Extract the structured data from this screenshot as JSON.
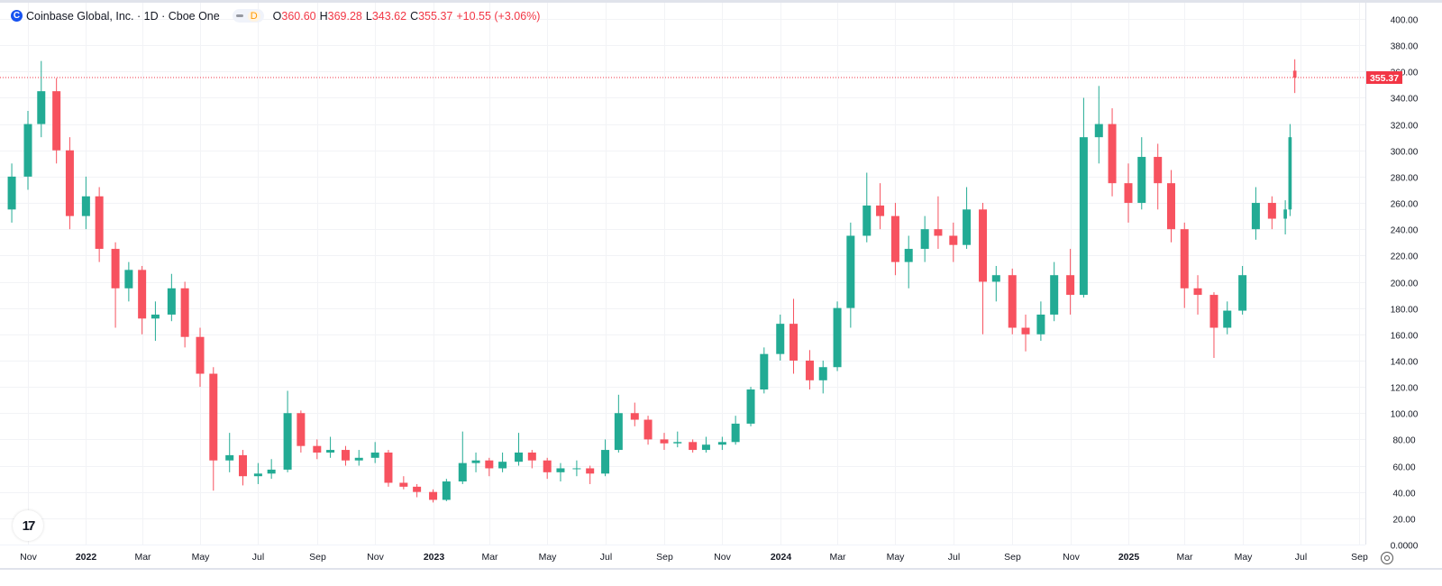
{
  "header": {
    "symbol_logo": "C",
    "title": "Coinbase Global, Inc. · 1D · Cboe One",
    "interval_badge": "D",
    "ohlc": {
      "o_label": "O",
      "o_value": "360.60",
      "h_label": "H",
      "h_value": "369.28",
      "l_label": "L",
      "l_value": "343.62",
      "c_label": "C",
      "c_value": "355.37",
      "change": "+10.55 (+3.06%)"
    }
  },
  "colors": {
    "up": "#22ab94",
    "down": "#f7525f",
    "last_price": "#f23645",
    "grid": "#f2f3f6"
  },
  "icons": {
    "tv_logo": "tradingview-logo",
    "settings": "auto-scale-settings-icon"
  },
  "tv_logo_text": "17",
  "chart_data": {
    "type": "candlestick",
    "ylim": [
      0,
      400
    ],
    "y_ticks": [
      "0.0000",
      "20.00",
      "40.00",
      "60.00",
      "80.00",
      "100.00",
      "120.00",
      "140.00",
      "160.00",
      "180.00",
      "200.00",
      "220.00",
      "240.00",
      "260.00",
      "280.00",
      "300.00",
      "320.00",
      "340.00",
      "360.00",
      "380.00",
      "400.00"
    ],
    "x_ticks": [
      {
        "date": "2021-11-01",
        "label": "Nov"
      },
      {
        "date": "2022-01-01",
        "label": "2022"
      },
      {
        "date": "2022-03-01",
        "label": "Mar"
      },
      {
        "date": "2022-05-01",
        "label": "May"
      },
      {
        "date": "2022-07-01",
        "label": "Jul"
      },
      {
        "date": "2022-09-01",
        "label": "Sep"
      },
      {
        "date": "2022-11-01",
        "label": "Nov"
      },
      {
        "date": "2023-01-01",
        "label": "2023"
      },
      {
        "date": "2023-03-01",
        "label": "Mar"
      },
      {
        "date": "2023-05-01",
        "label": "May"
      },
      {
        "date": "2023-07-01",
        "label": "Jul"
      },
      {
        "date": "2023-09-01",
        "label": "Sep"
      },
      {
        "date": "2023-11-01",
        "label": "Nov"
      },
      {
        "date": "2024-01-01",
        "label": "2024"
      },
      {
        "date": "2024-03-01",
        "label": "Mar"
      },
      {
        "date": "2024-05-01",
        "label": "May"
      },
      {
        "date": "2024-07-01",
        "label": "Jul"
      },
      {
        "date": "2024-09-01",
        "label": "Sep"
      },
      {
        "date": "2024-11-01",
        "label": "Nov"
      },
      {
        "date": "2025-01-01",
        "label": "2025"
      },
      {
        "date": "2025-03-01",
        "label": "Mar"
      },
      {
        "date": "2025-05-01",
        "label": "May"
      },
      {
        "date": "2025-07-01",
        "label": "Jul"
      },
      {
        "date": "2025-09-01",
        "label": "Sep"
      }
    ],
    "last_price": 355.37,
    "last_price_label": "355.37",
    "grid": true,
    "candles": [
      [
        "2021-10-15",
        255,
        290,
        245,
        280
      ],
      [
        "2021-11-01",
        280,
        330,
        270,
        320
      ],
      [
        "2021-11-15",
        320,
        368,
        310,
        345
      ],
      [
        "2021-12-01",
        345,
        355,
        290,
        300
      ],
      [
        "2021-12-15",
        300,
        310,
        240,
        250
      ],
      [
        "2022-01-01",
        250,
        280,
        240,
        265
      ],
      [
        "2022-01-15",
        265,
        272,
        215,
        225
      ],
      [
        "2022-02-01",
        225,
        230,
        165,
        195
      ],
      [
        "2022-02-15",
        195,
        215,
        185,
        209
      ],
      [
        "2022-03-01",
        209,
        212,
        160,
        172
      ],
      [
        "2022-03-15",
        172,
        185,
        155,
        175
      ],
      [
        "2022-04-01",
        175,
        206,
        170,
        195
      ],
      [
        "2022-04-15",
        195,
        200,
        150,
        158
      ],
      [
        "2022-05-01",
        158,
        165,
        120,
        130
      ],
      [
        "2022-05-15",
        130,
        135,
        41,
        64
      ],
      [
        "2022-06-01",
        64,
        85,
        55,
        68
      ],
      [
        "2022-06-15",
        68,
        72,
        45,
        52
      ],
      [
        "2022-07-01",
        52,
        62,
        46,
        54
      ],
      [
        "2022-07-15",
        54,
        65,
        50,
        57
      ],
      [
        "2022-08-01",
        57,
        117,
        55,
        100
      ],
      [
        "2022-08-15",
        100,
        102,
        70,
        75
      ],
      [
        "2022-09-01",
        75,
        80,
        65,
        70
      ],
      [
        "2022-09-15",
        70,
        82,
        66,
        72
      ],
      [
        "2022-10-01",
        72,
        75,
        60,
        64
      ],
      [
        "2022-10-15",
        64,
        72,
        60,
        66
      ],
      [
        "2022-11-01",
        66,
        78,
        62,
        70
      ],
      [
        "2022-11-15",
        70,
        72,
        44,
        47
      ],
      [
        "2022-12-01",
        47,
        52,
        42,
        44
      ],
      [
        "2022-12-15",
        44,
        46,
        36,
        40
      ],
      [
        "2023-01-01",
        40,
        42,
        32,
        34
      ],
      [
        "2023-01-15",
        34,
        50,
        33,
        48
      ],
      [
        "2023-02-01",
        48,
        86,
        46,
        62
      ],
      [
        "2023-02-15",
        62,
        70,
        55,
        64
      ],
      [
        "2023-03-01",
        64,
        66,
        52,
        58
      ],
      [
        "2023-03-15",
        58,
        70,
        55,
        63
      ],
      [
        "2023-04-01",
        63,
        85,
        60,
        70
      ],
      [
        "2023-04-15",
        70,
        72,
        58,
        64
      ],
      [
        "2023-05-01",
        64,
        66,
        50,
        55
      ],
      [
        "2023-05-15",
        55,
        62,
        48,
        58
      ],
      [
        "2023-06-01",
        58,
        64,
        52,
        58
      ],
      [
        "2023-06-15",
        58,
        60,
        46,
        54
      ],
      [
        "2023-07-01",
        54,
        80,
        52,
        72
      ],
      [
        "2023-07-15",
        72,
        114,
        70,
        100
      ],
      [
        "2023-08-01",
        100,
        108,
        90,
        95
      ],
      [
        "2023-08-15",
        95,
        98,
        76,
        80
      ],
      [
        "2023-09-01",
        80,
        85,
        72,
        77
      ],
      [
        "2023-09-15",
        77,
        86,
        74,
        78
      ],
      [
        "2023-10-01",
        78,
        80,
        70,
        72
      ],
      [
        "2023-10-15",
        72,
        82,
        70,
        76
      ],
      [
        "2023-11-01",
        76,
        82,
        72,
        78
      ],
      [
        "2023-11-15",
        78,
        98,
        76,
        92
      ],
      [
        "2023-12-01",
        92,
        120,
        90,
        118
      ],
      [
        "2023-12-15",
        118,
        150,
        115,
        145
      ],
      [
        "2024-01-01",
        145,
        175,
        140,
        168
      ],
      [
        "2024-01-15",
        168,
        187,
        130,
        140
      ],
      [
        "2024-02-01",
        140,
        148,
        118,
        125
      ],
      [
        "2024-02-15",
        125,
        140,
        115,
        135
      ],
      [
        "2024-03-01",
        135,
        185,
        132,
        180
      ],
      [
        "2024-03-15",
        180,
        245,
        165,
        235
      ],
      [
        "2024-04-01",
        235,
        283,
        230,
        258
      ],
      [
        "2024-04-15",
        258,
        275,
        240,
        250
      ],
      [
        "2024-05-01",
        250,
        260,
        205,
        215
      ],
      [
        "2024-05-15",
        215,
        235,
        195,
        225
      ],
      [
        "2024-06-01",
        225,
        250,
        215,
        240
      ],
      [
        "2024-06-15",
        240,
        265,
        225,
        235
      ],
      [
        "2024-07-01",
        235,
        245,
        215,
        228
      ],
      [
        "2024-07-15",
        228,
        272,
        225,
        255
      ],
      [
        "2024-08-01",
        255,
        260,
        160,
        200
      ],
      [
        "2024-08-15",
        200,
        212,
        185,
        205
      ],
      [
        "2024-09-01",
        205,
        210,
        160,
        165
      ],
      [
        "2024-09-15",
        165,
        175,
        147,
        160
      ],
      [
        "2024-10-01",
        160,
        185,
        155,
        175
      ],
      [
        "2024-10-15",
        175,
        215,
        170,
        205
      ],
      [
        "2024-11-01",
        205,
        225,
        175,
        190
      ],
      [
        "2024-11-15",
        190,
        340,
        188,
        310
      ],
      [
        "2024-12-01",
        310,
        349,
        290,
        320
      ],
      [
        "2024-12-15",
        320,
        332,
        265,
        275
      ],
      [
        "2025-01-01",
        275,
        290,
        245,
        260
      ],
      [
        "2025-01-15",
        260,
        310,
        255,
        295
      ],
      [
        "2025-02-01",
        295,
        305,
        255,
        275
      ],
      [
        "2025-02-15",
        275,
        285,
        230,
        240
      ],
      [
        "2025-03-01",
        240,
        245,
        180,
        195
      ],
      [
        "2025-03-15",
        195,
        205,
        175,
        190
      ],
      [
        "2025-04-01",
        190,
        192,
        142,
        165
      ],
      [
        "2025-04-15",
        165,
        185,
        160,
        178
      ],
      [
        "2025-05-01",
        178,
        212,
        175,
        205
      ],
      [
        "2025-05-15",
        240,
        272,
        232,
        260
      ],
      [
        "2025-06-01",
        260,
        265,
        240,
        248
      ],
      [
        "2025-06-15",
        248,
        262,
        236,
        255
      ],
      [
        "2025-06-20",
        255,
        320,
        250,
        310
      ],
      [
        "2025-06-25",
        360.6,
        369.28,
        343.62,
        355.37
      ]
    ]
  }
}
